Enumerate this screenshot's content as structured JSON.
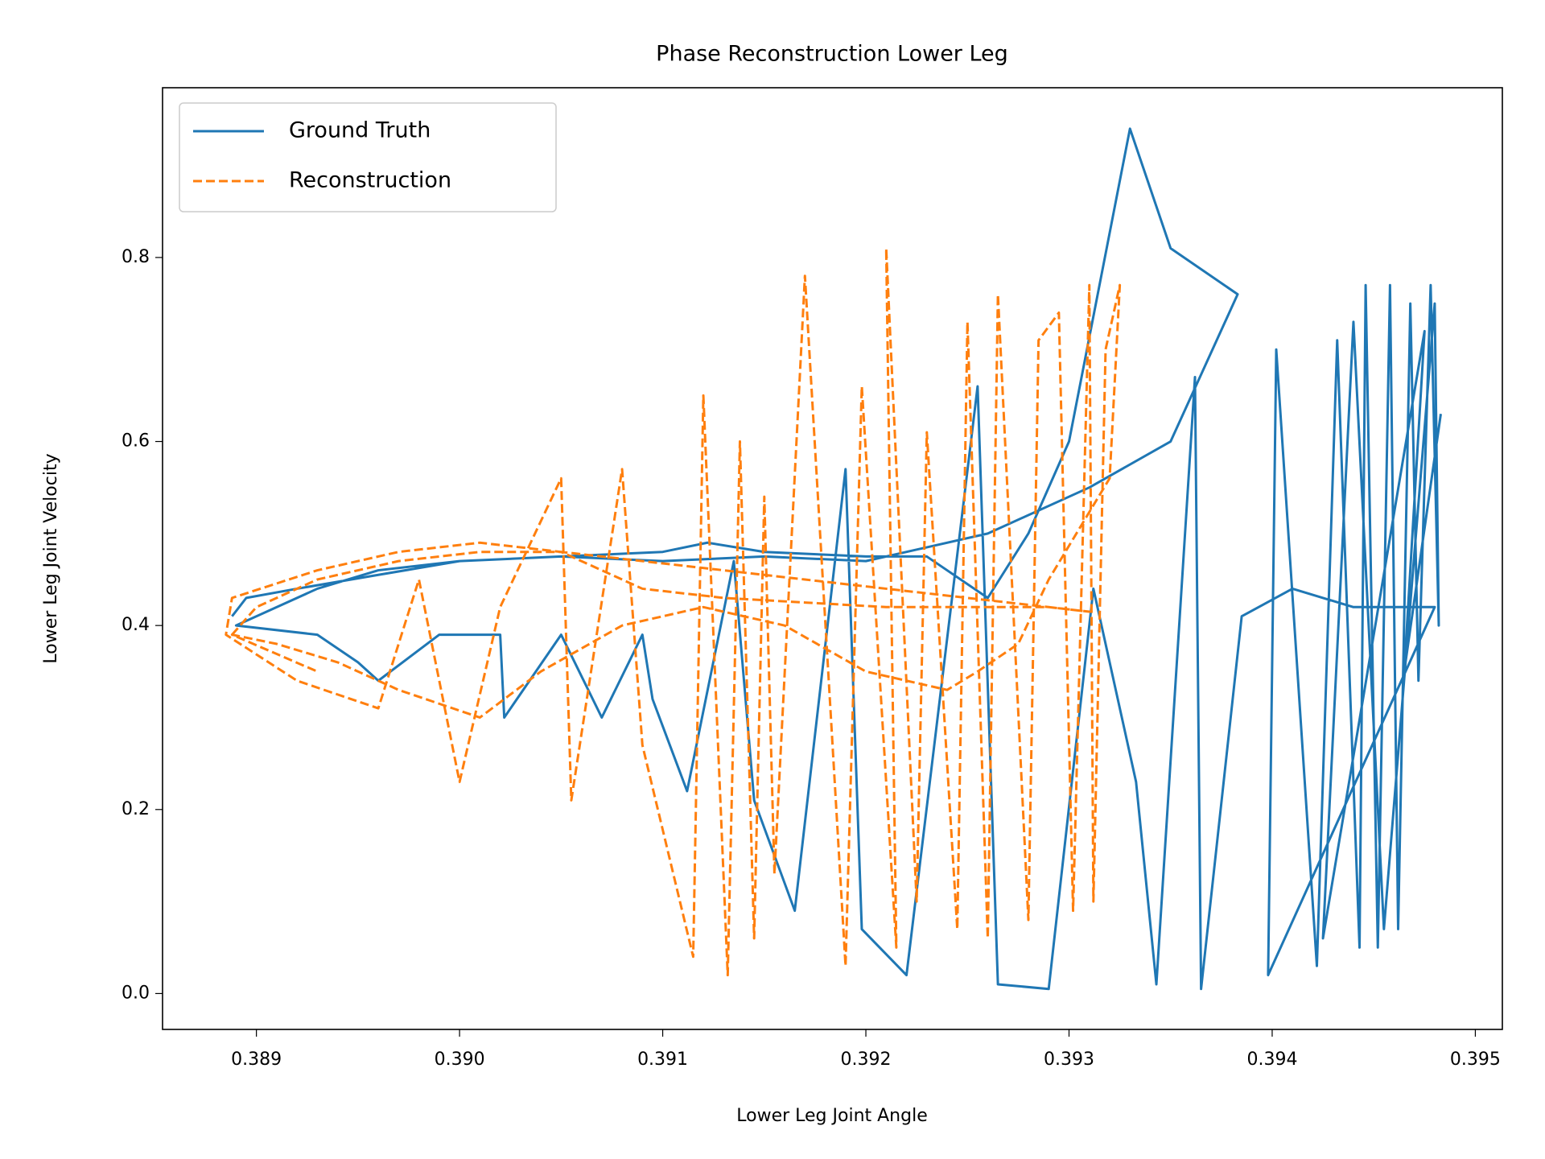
{
  "chart_data": {
    "type": "line",
    "title": "Phase Reconstruction Lower Leg",
    "x_label": "Lower Leg Joint Angle",
    "y_label": "Lower Leg Joint Velocity",
    "xlim": [
      0.388538,
      0.395133
    ],
    "ylim": [
      -0.039,
      0.9845
    ],
    "xticks": [
      0.389,
      {
        "value": 0.39,
        "label": "0.390"
      },
      0.391,
      0.392,
      0.393,
      0.394,
      0.395
    ],
    "yticks": [
      {
        "value": 0,
        "label": "0.0"
      },
      0.2,
      0.4,
      0.6,
      0.8
    ],
    "legend": "upper left",
    "series": [
      {
        "name": "Ground Truth",
        "color": "#1f77b4",
        "linestyle": "solid",
        "x": [
          0.38888,
          0.38895,
          0.3892,
          0.3896,
          0.39,
          0.3905,
          0.391,
          0.39122,
          0.3915,
          0.392,
          0.3923,
          0.3926,
          0.3928,
          0.393,
          0.3933,
          0.3935,
          0.39383,
          0.3935,
          0.3931,
          0.3926,
          0.392,
          0.3915,
          0.391,
          0.3905,
          0.39,
          0.3896,
          0.3893,
          0.3889,
          0.3893,
          0.3895,
          0.3896,
          0.3899,
          0.3902,
          0.39022,
          0.3905,
          0.3907,
          0.3909,
          0.39095,
          0.39112,
          0.39135,
          0.39145,
          0.39165,
          0.3919,
          0.39198,
          0.3922,
          0.39255,
          0.39265,
          0.3929,
          0.39312,
          0.39333,
          0.39343,
          0.39362,
          0.39365,
          0.39385,
          0.3941,
          0.3944,
          0.3948,
          0.39398,
          0.39402,
          0.39422,
          0.39432,
          0.39443,
          0.39446,
          0.39452,
          0.39458,
          0.39462,
          0.39468,
          0.39472,
          0.39478,
          0.39482,
          0.3948,
          0.39455,
          0.3944,
          0.39425,
          0.39475,
          0.39465,
          0.39483
        ],
        "y": [
          0.41,
          0.43,
          0.44,
          0.455,
          0.47,
          0.475,
          0.48,
          0.49,
          0.48,
          0.475,
          0.475,
          0.43,
          0.5,
          0.6,
          0.94,
          0.81,
          0.76,
          0.6,
          0.55,
          0.5,
          0.47,
          0.475,
          0.47,
          0.475,
          0.47,
          0.46,
          0.44,
          0.4,
          0.39,
          0.36,
          0.34,
          0.39,
          0.39,
          0.3,
          0.39,
          0.3,
          0.39,
          0.32,
          0.22,
          0.47,
          0.21,
          0.09,
          0.57,
          0.07,
          0.02,
          0.66,
          0.01,
          0.005,
          0.44,
          0.23,
          0.01,
          0.67,
          0.005,
          0.41,
          0.44,
          0.42,
          0.42,
          0.02,
          0.7,
          0.03,
          0.71,
          0.05,
          0.77,
          0.05,
          0.77,
          0.07,
          0.75,
          0.34,
          0.77,
          0.4,
          0.75,
          0.07,
          0.73,
          0.06,
          0.72,
          0.35,
          0.63
        ]
      },
      {
        "name": "Reconstruction",
        "color": "#ff7f0e",
        "linestyle": "dashed",
        "x": [
          0.38888,
          0.389,
          0.3893,
          0.3897,
          0.3901,
          0.3905,
          0.3909,
          0.3913,
          0.3917,
          0.3921,
          0.3925,
          0.3929,
          0.3931,
          0.3929,
          0.3925,
          0.3921,
          0.3917,
          0.3913,
          0.3909,
          0.3905,
          0.3901,
          0.3897,
          0.3893,
          0.38888,
          0.38885,
          0.3892,
          0.3896,
          0.3898,
          0.39,
          0.3902,
          0.3905,
          0.39055,
          0.3908,
          0.3909,
          0.39115,
          0.3912,
          0.39132,
          0.39138,
          0.39145,
          0.3915,
          0.39155,
          0.3917,
          0.3919,
          0.39198,
          0.39215,
          0.3921,
          0.39225,
          0.3923,
          0.39245,
          0.3925,
          0.3926,
          0.39265,
          0.3928,
          0.39285,
          0.39295,
          0.39302,
          0.3931,
          0.39312,
          0.39318,
          0.39325,
          0.3932,
          0.3929,
          0.39275,
          0.39255,
          0.3924,
          0.392,
          0.3916,
          0.3912,
          0.3908,
          0.3904,
          0.3901,
          0.3897,
          0.3894,
          0.3891,
          0.38888,
          0.3893
        ],
        "y": [
          0.39,
          0.42,
          0.45,
          0.47,
          0.48,
          0.48,
          0.47,
          0.46,
          0.45,
          0.44,
          0.43,
          0.42,
          0.415,
          0.42,
          0.42,
          0.42,
          0.425,
          0.43,
          0.44,
          0.48,
          0.49,
          0.48,
          0.46,
          0.43,
          0.39,
          0.34,
          0.31,
          0.45,
          0.23,
          0.42,
          0.56,
          0.21,
          0.57,
          0.27,
          0.04,
          0.65,
          0.02,
          0.6,
          0.06,
          0.54,
          0.13,
          0.78,
          0.03,
          0.66,
          0.05,
          0.81,
          0.1,
          0.61,
          0.07,
          0.73,
          0.06,
          0.76,
          0.08,
          0.71,
          0.74,
          0.09,
          0.77,
          0.1,
          0.7,
          0.77,
          0.56,
          0.45,
          0.38,
          0.35,
          0.33,
          0.35,
          0.4,
          0.42,
          0.4,
          0.35,
          0.3,
          0.33,
          0.36,
          0.38,
          0.39,
          0.35
        ]
      }
    ]
  }
}
